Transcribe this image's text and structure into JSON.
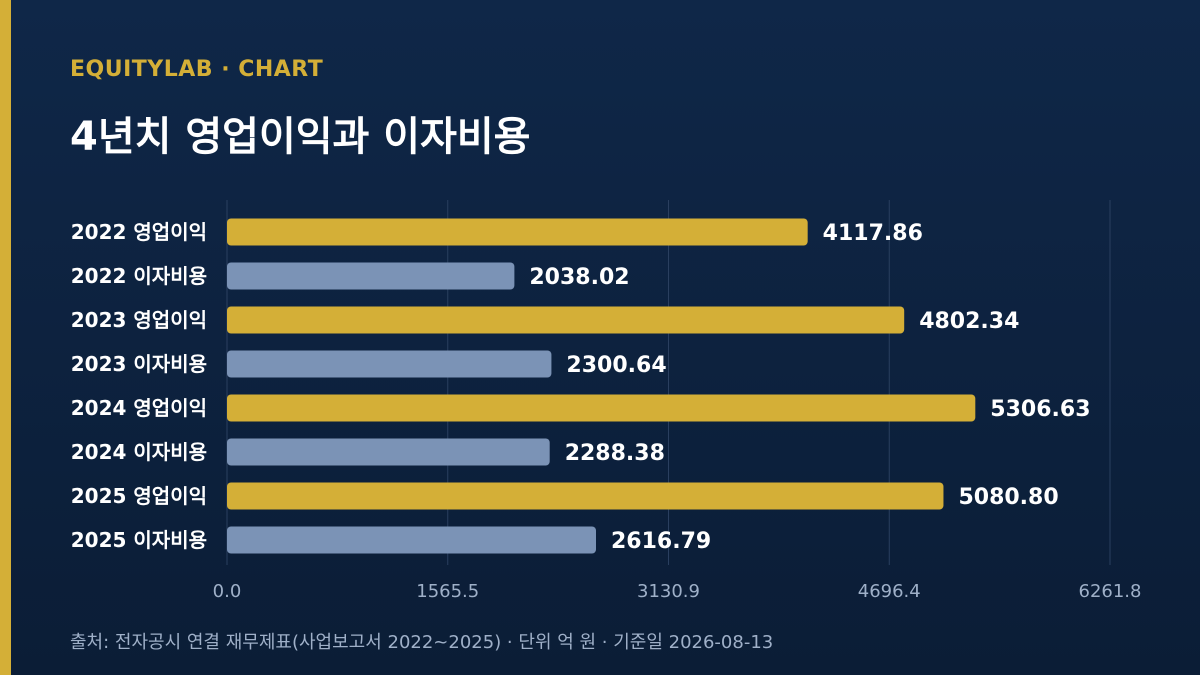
{
  "header": {
    "brand": "EQUITYLAB · CHART",
    "title": "4년치 영업이익과 이자비용"
  },
  "footer": {
    "source": "출처: 전자공시 연결 재무제표(사업보고서 2022~2025) · 단위 억 원 · 기준일 2026-08-13"
  },
  "colors": {
    "background": "#0f2748",
    "accent": "#d4af37",
    "operating_profit": "#d4af37",
    "interest_expense": "#7b93b6",
    "grid": "#2a3f5f"
  },
  "chart_data": {
    "type": "bar",
    "orientation": "horizontal",
    "categories": [
      "2022 영업이익",
      "2022 이자비용",
      "2023 영업이익",
      "2023 이자비용",
      "2024 영업이익",
      "2024 이자비용",
      "2025 영업이익",
      "2025 이자비용"
    ],
    "values": [
      4117.86,
      2038.02,
      4802.34,
      2300.64,
      5306.63,
      2288.38,
      5080.8,
      2616.79
    ],
    "value_labels": [
      "4117.86",
      "2038.02",
      "4802.34",
      "2300.64",
      "5306.63",
      "2288.38",
      "5080.80",
      "2616.79"
    ],
    "kinds": [
      "operating_profit",
      "interest_expense",
      "operating_profit",
      "interest_expense",
      "operating_profit",
      "interest_expense",
      "operating_profit",
      "interest_expense"
    ],
    "x_ticks": [
      0,
      1565.5,
      3130.9,
      4696.4,
      6261.8
    ],
    "x_tick_labels": [
      "0.0",
      "1565.5",
      "3130.9",
      "4696.4",
      "6261.8"
    ],
    "xlim": [
      0,
      6261.8
    ],
    "grid": true
  }
}
